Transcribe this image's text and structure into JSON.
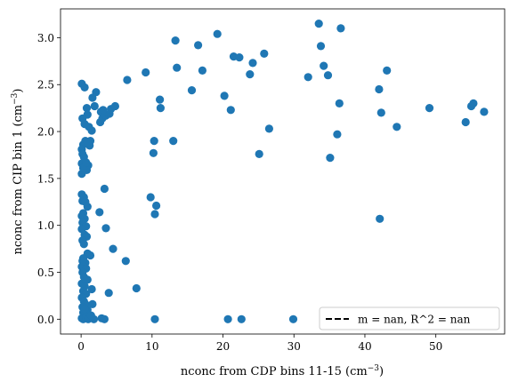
{
  "chart_data": {
    "type": "scatter",
    "xlabel_main": "nconc from CDP bins 11-15 (cm",
    "xlabel_sup": "−3",
    "xlabel_end": ")",
    "ylabel_main": "nconc from CIP bin 1 (cm",
    "ylabel_sup": "−3",
    "ylabel_end": ")",
    "xlim": [
      -2.9,
      59.7
    ],
    "ylim": [
      -0.158,
      3.307
    ],
    "xticks": [
      0,
      10,
      20,
      30,
      40,
      50
    ],
    "xtick_labels": [
      "0",
      "10",
      "20",
      "30",
      "40",
      "50"
    ],
    "yticks": [
      0.0,
      0.5,
      1.0,
      1.5,
      2.0,
      2.5,
      3.0
    ],
    "ytick_labels": [
      "0.0",
      "0.5",
      "1.0",
      "1.5",
      "2.0",
      "2.5",
      "3.0"
    ],
    "point_color": "#1f77b4",
    "legend": {
      "label": "m = nan, R^2 = nan",
      "placement": "lower-right",
      "line_style": "dashed",
      "line_color": "#000000"
    },
    "grid": false,
    "points": [
      [
        0.1,
        2.51
      ],
      [
        0.5,
        2.47
      ],
      [
        0.8,
        2.25
      ],
      [
        0.9,
        2.18
      ],
      [
        1.6,
        2.36
      ],
      [
        2.1,
        2.42
      ],
      [
        1.9,
        2.27
      ],
      [
        0.2,
        2.14
      ],
      [
        0.5,
        2.08
      ],
      [
        1.1,
        2.05
      ],
      [
        1.5,
        2.01
      ],
      [
        1.3,
        1.9
      ],
      [
        0.6,
        1.9
      ],
      [
        0.3,
        1.86
      ],
      [
        0.1,
        1.81
      ],
      [
        0.2,
        1.76
      ],
      [
        0.4,
        1.73
      ],
      [
        0.1,
        1.66
      ],
      [
        0.5,
        1.63
      ],
      [
        1.0,
        1.64
      ],
      [
        0.8,
        1.59
      ],
      [
        0.1,
        1.55
      ],
      [
        0.3,
        1.61
      ],
      [
        0.7,
        1.67
      ],
      [
        1.2,
        1.85
      ],
      [
        0.9,
        1.89
      ],
      [
        2.7,
        2.1
      ],
      [
        3.0,
        2.14
      ],
      [
        3.2,
        2.19
      ],
      [
        3.5,
        2.17
      ],
      [
        4.0,
        2.19
      ],
      [
        4.2,
        2.24
      ],
      [
        4.8,
        2.27
      ],
      [
        2.8,
        2.21
      ],
      [
        3.1,
        2.23
      ],
      [
        6.5,
        2.55
      ],
      [
        9.1,
        2.63
      ],
      [
        0.1,
        1.33
      ],
      [
        0.4,
        1.3
      ],
      [
        0.2,
        1.26
      ],
      [
        0.6,
        1.25
      ],
      [
        0.9,
        1.2
      ],
      [
        0.3,
        1.13
      ],
      [
        0.1,
        1.1
      ],
      [
        0.5,
        1.07
      ],
      [
        0.2,
        1.03
      ],
      [
        0.7,
        0.99
      ],
      [
        0.1,
        0.96
      ],
      [
        0.5,
        0.9
      ],
      [
        0.8,
        0.88
      ],
      [
        0.2,
        0.84
      ],
      [
        0.4,
        0.8
      ],
      [
        0.9,
        0.7
      ],
      [
        1.3,
        0.68
      ],
      [
        0.3,
        0.65
      ],
      [
        0.6,
        0.6
      ],
      [
        0.1,
        0.56
      ],
      [
        0.7,
        0.54
      ],
      [
        0.2,
        0.5
      ],
      [
        0.4,
        0.45
      ],
      [
        0.9,
        0.42
      ],
      [
        0.1,
        0.38
      ],
      [
        0.5,
        0.35
      ],
      [
        0.3,
        0.3
      ],
      [
        0.7,
        0.27
      ],
      [
        0.1,
        0.23
      ],
      [
        0.4,
        0.19
      ],
      [
        0.6,
        0.16
      ],
      [
        0.2,
        0.13
      ],
      [
        0.9,
        0.1
      ],
      [
        0.3,
        0.07
      ],
      [
        0.5,
        0.04
      ],
      [
        0.1,
        0.01
      ],
      [
        0.3,
        0.0
      ],
      [
        0.7,
        0.02
      ],
      [
        1.0,
        0.0
      ],
      [
        1.4,
        0.04
      ],
      [
        0.5,
        0.11
      ],
      [
        0.2,
        0.62
      ],
      [
        1.5,
        0.32
      ],
      [
        1.6,
        0.16
      ],
      [
        1.8,
        0.0
      ],
      [
        2.6,
        1.14
      ],
      [
        3.3,
        1.39
      ],
      [
        3.5,
        0.97
      ],
      [
        4.5,
        0.75
      ],
      [
        6.3,
        0.62
      ],
      [
        7.8,
        0.33
      ],
      [
        3.9,
        0.28
      ],
      [
        2.9,
        0.01
      ],
      [
        3.3,
        0.0
      ],
      [
        9.8,
        1.3
      ],
      [
        10.2,
        1.77
      ],
      [
        10.3,
        1.9
      ],
      [
        10.4,
        1.12
      ],
      [
        10.6,
        1.21
      ],
      [
        11.1,
        2.34
      ],
      [
        11.2,
        2.25
      ],
      [
        10.4,
        0.0
      ],
      [
        13.0,
        1.9
      ],
      [
        13.3,
        2.97
      ],
      [
        13.5,
        2.68
      ],
      [
        15.6,
        2.44
      ],
      [
        16.5,
        2.92
      ],
      [
        17.1,
        2.65
      ],
      [
        19.2,
        3.04
      ],
      [
        20.2,
        2.38
      ],
      [
        21.1,
        2.23
      ],
      [
        21.5,
        2.8
      ],
      [
        22.3,
        2.79
      ],
      [
        23.8,
        2.61
      ],
      [
        24.2,
        2.73
      ],
      [
        25.1,
        1.76
      ],
      [
        25.8,
        2.83
      ],
      [
        26.5,
        2.03
      ],
      [
        20.7,
        0.0
      ],
      [
        22.6,
        0.0
      ],
      [
        29.9,
        0.0
      ],
      [
        32.0,
        2.58
      ],
      [
        33.5,
        3.15
      ],
      [
        33.8,
        2.91
      ],
      [
        34.2,
        2.7
      ],
      [
        34.8,
        2.6
      ],
      [
        35.1,
        1.72
      ],
      [
        36.1,
        1.97
      ],
      [
        36.4,
        2.3
      ],
      [
        36.6,
        3.1
      ],
      [
        42.0,
        2.45
      ],
      [
        42.3,
        2.2
      ],
      [
        43.1,
        2.65
      ],
      [
        44.5,
        2.05
      ],
      [
        42.1,
        1.07
      ],
      [
        49.1,
        2.25
      ],
      [
        54.2,
        2.1
      ],
      [
        55.0,
        2.27
      ],
      [
        55.3,
        2.3
      ],
      [
        56.8,
        2.21
      ]
    ]
  }
}
